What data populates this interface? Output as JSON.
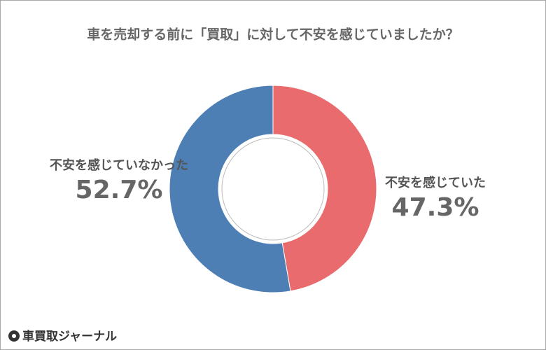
{
  "chart_data": {
    "type": "pie",
    "title": "車を売却する前に「買取」に対して不安を感じていましたか？",
    "categories": [
      "不安を感じていた",
      "不安を感じていなかった"
    ],
    "values": [
      47.3,
      52.7
    ],
    "value_labels": [
      "47.3%",
      "52.7%"
    ],
    "colors": [
      "#e96b6e",
      "#4d7fb5"
    ],
    "donut": true
  },
  "logo": "車買取ジャーナル"
}
